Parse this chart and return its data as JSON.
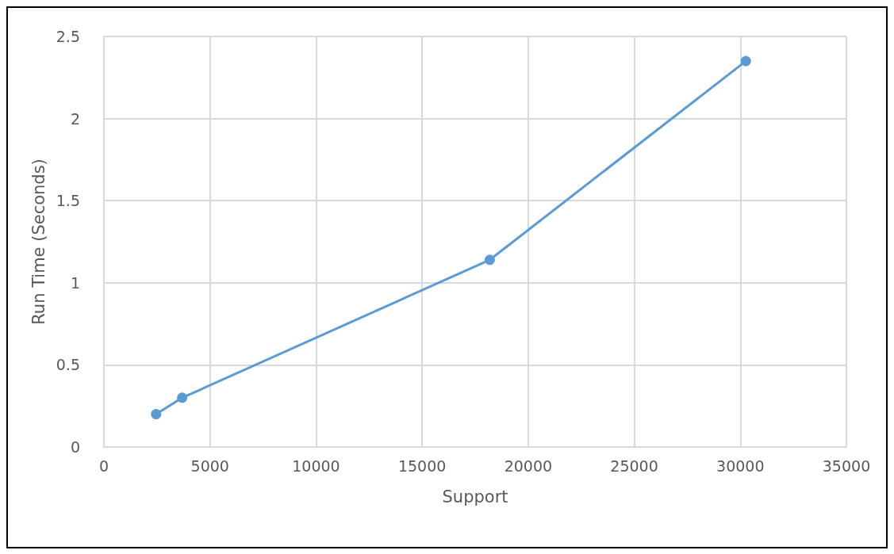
{
  "chart_data": {
    "type": "line",
    "xlabel": "Support",
    "ylabel": "Run Time (Seconds)",
    "x": [
      2460,
      3690,
      18190,
      30260
    ],
    "series": [
      {
        "color": "#5b9bd5",
        "values": [
          0.2,
          0.3,
          1.14,
          2.35
        ]
      }
    ],
    "xlim": [
      0,
      35000
    ],
    "xticks": [
      0,
      5000,
      10000,
      15000,
      20000,
      25000,
      30000,
      35000
    ],
    "ylim": [
      0,
      2.5
    ],
    "yticks": [
      0,
      0.5,
      1,
      1.5,
      2,
      2.5
    ],
    "grid": true,
    "marker": "circle",
    "line_style": "solid"
  }
}
